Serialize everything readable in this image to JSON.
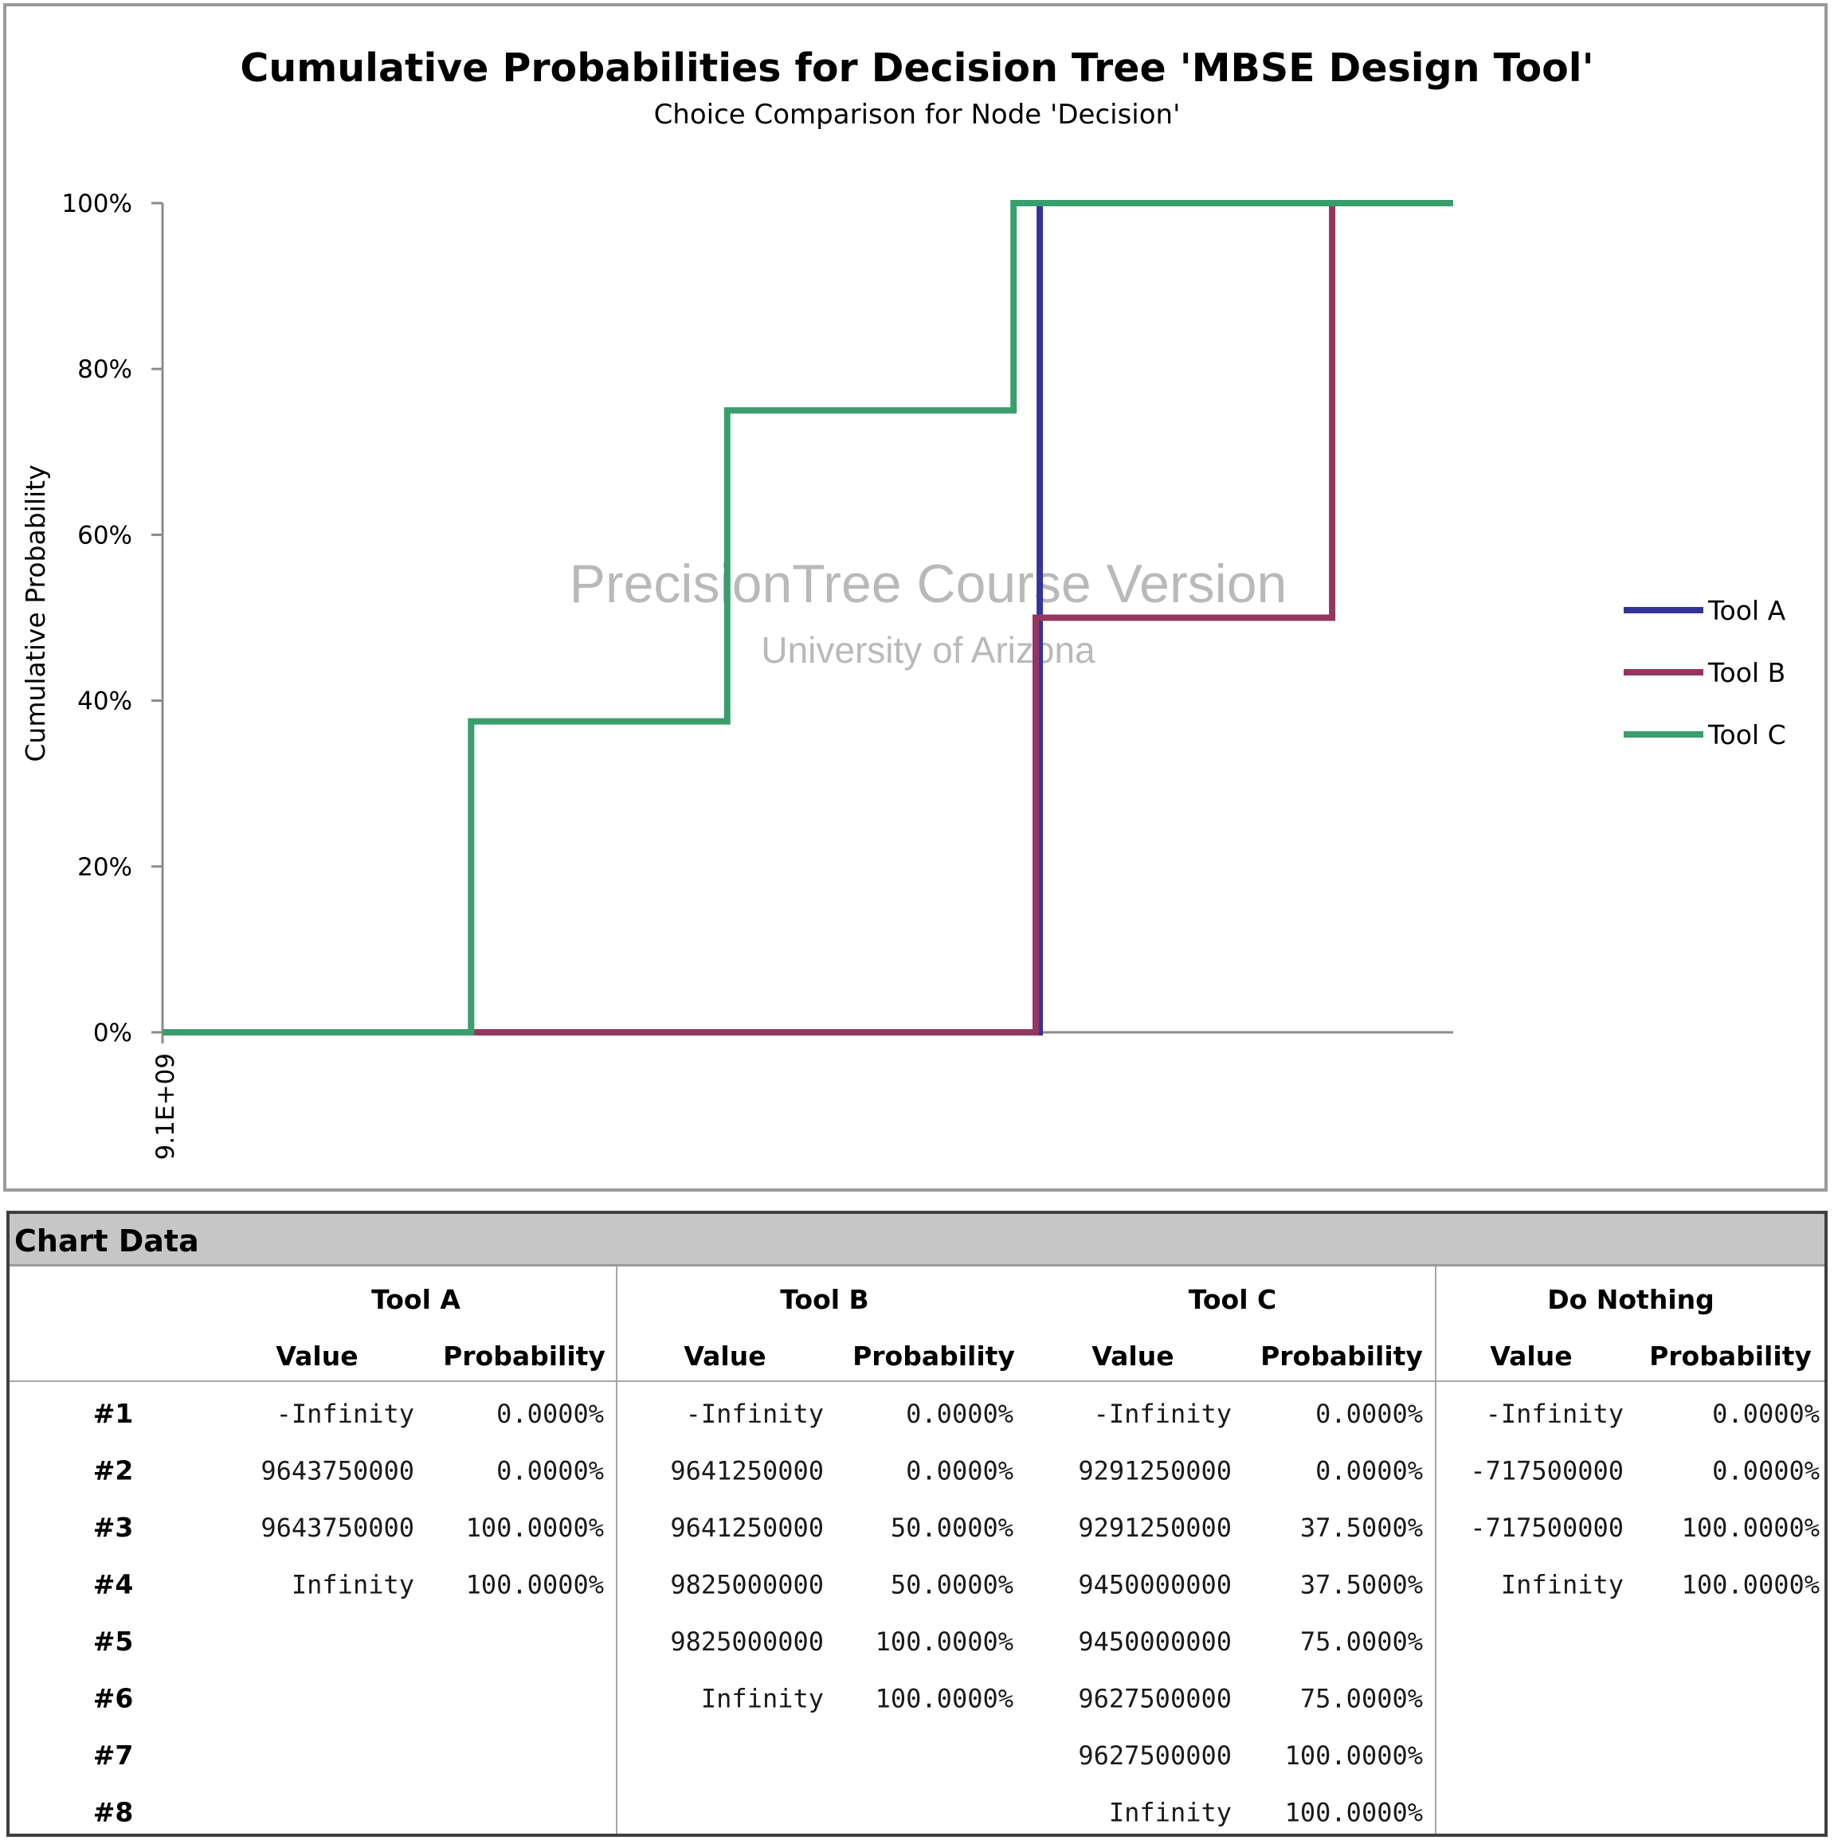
{
  "chart_data": {
    "type": "line",
    "title": "Cumulative Probabilities for Decision Tree 'MBSE Design Tool'",
    "subtitle": "Choice Comparison for Node 'Decision'",
    "ylabel": "Cumulative Probability",
    "xlabel": "",
    "y_ticks": [
      "0%",
      "20%",
      "40%",
      "60%",
      "80%",
      "100%"
    ],
    "x_tick": "9.1E+09",
    "xlim": [
      9100000000,
      9900000000
    ],
    "ylim": [
      0,
      1
    ],
    "grid": false,
    "legend_position": "right",
    "watermark": {
      "line1": "PrecisionTree Course Version",
      "line2": "University of Arizona"
    },
    "series": [
      {
        "name": "Tool A",
        "color": "#33349a",
        "points": [
          [
            9100000000,
            0
          ],
          [
            9643750000,
            0
          ],
          [
            9643750000,
            1
          ],
          [
            9900000000,
            1
          ]
        ]
      },
      {
        "name": "Tool B",
        "color": "#94365f",
        "points": [
          [
            9100000000,
            0
          ],
          [
            9641250000,
            0
          ],
          [
            9641250000,
            0.5
          ],
          [
            9825000000,
            0.5
          ],
          [
            9825000000,
            1
          ],
          [
            9900000000,
            1
          ]
        ]
      },
      {
        "name": "Tool C",
        "color": "#3a9e6c",
        "points": [
          [
            9100000000,
            0
          ],
          [
            9291250000,
            0
          ],
          [
            9291250000,
            0.375
          ],
          [
            9450000000,
            0.375
          ],
          [
            9450000000,
            0.75
          ],
          [
            9627500000,
            0.75
          ],
          [
            9627500000,
            1
          ],
          [
            9900000000,
            1
          ]
        ]
      }
    ]
  },
  "table": {
    "header": "Chart Data",
    "groups": [
      "Tool A",
      "Tool B",
      "Tool C",
      "Do Nothing"
    ],
    "sub_value": "Value",
    "sub_prob": "Probability",
    "row_labels": [
      "#1",
      "#2",
      "#3",
      "#4",
      "#5",
      "#6",
      "#7",
      "#8"
    ],
    "columns": [
      {
        "values": [
          "-Infinity",
          "9643750000",
          "9643750000",
          "Infinity"
        ],
        "probs": [
          "0.0000%",
          "0.0000%",
          "100.0000%",
          "100.0000%"
        ]
      },
      {
        "values": [
          "-Infinity",
          "9641250000",
          "9641250000",
          "9825000000",
          "9825000000",
          "Infinity"
        ],
        "probs": [
          "0.0000%",
          "0.0000%",
          "50.0000%",
          "50.0000%",
          "100.0000%",
          "100.0000%"
        ]
      },
      {
        "values": [
          "-Infinity",
          "9291250000",
          "9291250000",
          "9450000000",
          "9450000000",
          "9627500000",
          "9627500000",
          "Infinity"
        ],
        "probs": [
          "0.0000%",
          "0.0000%",
          "37.5000%",
          "37.5000%",
          "75.0000%",
          "75.0000%",
          "100.0000%",
          "100.0000%"
        ]
      },
      {
        "values": [
          "-Infinity",
          "-717500000",
          "-717500000",
          "Infinity"
        ],
        "probs": [
          "0.0000%",
          "0.0000%",
          "100.0000%",
          "100.0000%"
        ]
      }
    ]
  }
}
